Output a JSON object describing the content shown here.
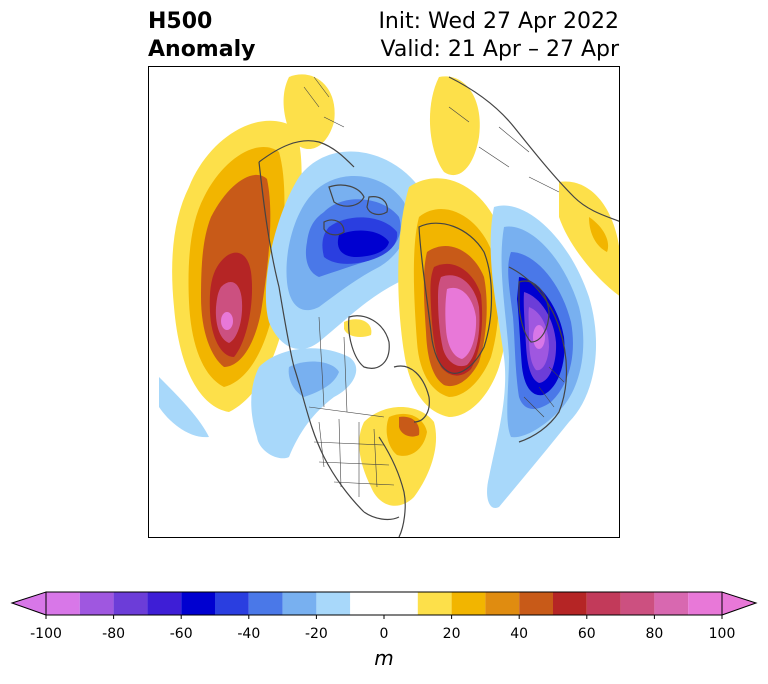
{
  "title": {
    "left_line1": "H500",
    "left_line2": "Anomaly",
    "right_line1": "Init: Wed 27 Apr 2022",
    "right_line2": "Valid: 21 Apr – 27 Apr"
  },
  "map": {
    "projection": "polar stereographic, North America / Northern Hemisphere",
    "coastline_color": "#444444",
    "anomaly_features": [
      {
        "region": "Gulf of Alaska / NE Pacific",
        "sign": "positive",
        "peak_m": 90
      },
      {
        "region": "Canadian Arctic / Baffin",
        "sign": "negative",
        "peak_m": -60
      },
      {
        "region": "Greenland",
        "sign": "positive",
        "peak_m": 100
      },
      {
        "region": "Scandinavia / NW Europe",
        "sign": "negative",
        "peak_m": -100
      },
      {
        "region": "Eastern United States",
        "sign": "positive",
        "peak_m": 30
      },
      {
        "region": "Central Siberia",
        "sign": "positive",
        "peak_m": 20
      }
    ]
  },
  "colorbar": {
    "unit": "m",
    "ticks": [
      "-100",
      "-80",
      "-60",
      "-40",
      "-20",
      "0",
      "20",
      "40",
      "60",
      "80",
      "100"
    ],
    "levels": [
      -100,
      -90,
      -80,
      -70,
      -60,
      -50,
      -40,
      -30,
      -20,
      -10,
      10,
      20,
      30,
      40,
      50,
      60,
      70,
      80,
      90,
      100
    ],
    "colors": [
      "#d877e8",
      "#9f57e0",
      "#6c3dd8",
      "#3e1ed6",
      "#0000d0",
      "#2a3ee0",
      "#4a78e8",
      "#78b0f0",
      "#a8d8fa",
      "#ffffff",
      "#fde04a",
      "#f2b500",
      "#e08c10",
      "#c85a18",
      "#b52525",
      "#c23a5a",
      "#cc5080",
      "#d868b0",
      "#e878d8"
    ],
    "under_color": "#d877e8",
    "over_color": "#e878d8"
  }
}
